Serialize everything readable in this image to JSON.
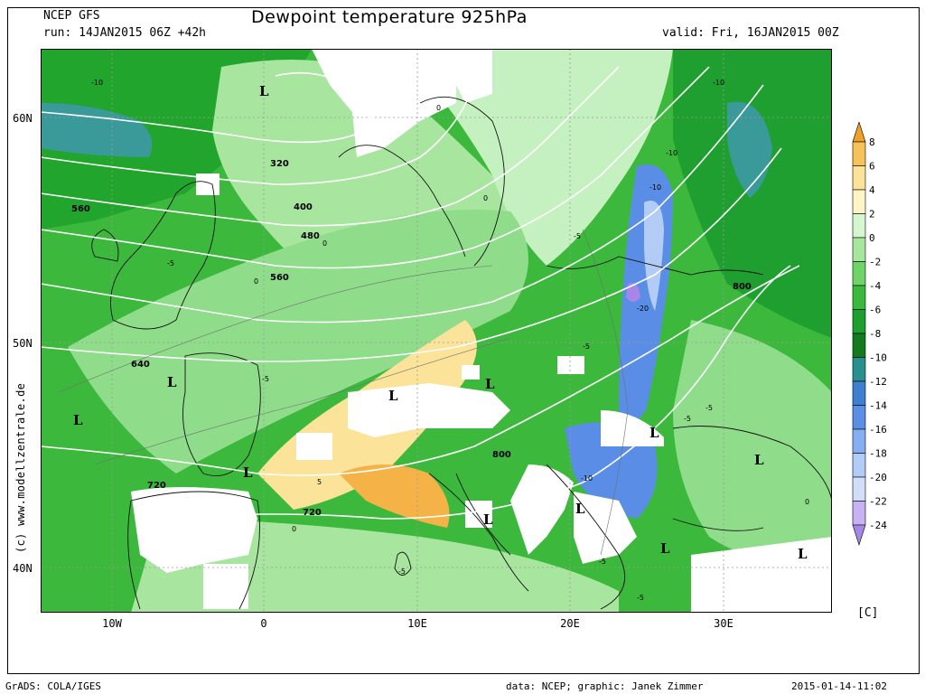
{
  "header": {
    "model": "NCEP GFS",
    "run": "run: 14JAN2015 06Z +42h",
    "title": "Dewpoint temperature 925hPa",
    "valid": "valid: Fri, 16JAN2015 00Z"
  },
  "map": {
    "lat_ticks": [
      "60N",
      "50N",
      "40N"
    ],
    "lon_ticks": [
      "10W",
      "0",
      "10E",
      "20E",
      "30E"
    ],
    "vertical_label": "(c) www.modellzentrale.de",
    "geopotential_labels": [
      "320",
      "400",
      "480",
      "560",
      "560",
      "640",
      "720",
      "720",
      "800",
      "800"
    ],
    "dewpoint_labels": [
      "-10",
      "-10",
      "-10",
      "-10",
      "-20",
      "-5",
      "-5",
      "-5",
      "-5",
      "-5",
      "-5",
      "-5",
      "-10",
      "-5",
      "-5",
      "0",
      "0",
      "0",
      "0",
      "0",
      "0",
      "5"
    ],
    "low_symbol": "L",
    "colors": {
      "ocean_green": "#3cb93c",
      "dark_green": "#1fa51f",
      "light_green": "#8fdc8a",
      "pale_green": "#c5f0bf",
      "teal": "#3a9a9a",
      "blue": "#5a8ee6",
      "light_blue": "#8fb8f2",
      "yellow": "#fbe39a",
      "orange": "#f5b247",
      "terrain_white": "#ffffff"
    }
  },
  "colorbar": {
    "unit": "[C]",
    "labels": [
      "8",
      "6",
      "4",
      "2",
      "0",
      "-2",
      "-4",
      "-6",
      "-8",
      "-10",
      "-12",
      "-14",
      "-16",
      "-18",
      "-20",
      "-22",
      "-24"
    ],
    "colors": [
      "#f0a028",
      "#f7c25a",
      "#fbe39a",
      "#fdf5c8",
      "#d6f5d0",
      "#a8e6a0",
      "#6fd36a",
      "#3cb93c",
      "#1f9f2f",
      "#137a1f",
      "#2a8f8f",
      "#3f7fd0",
      "#5b8fe6",
      "#86aff0",
      "#b3ccf6",
      "#d2ddf9",
      "#c9b2f2",
      "#a786ea"
    ]
  },
  "footer": {
    "left": "GrADS: COLA/IGES",
    "center": "data: NCEP; graphic: Janek Zimmer",
    "right": "2015-01-14-11:02"
  }
}
